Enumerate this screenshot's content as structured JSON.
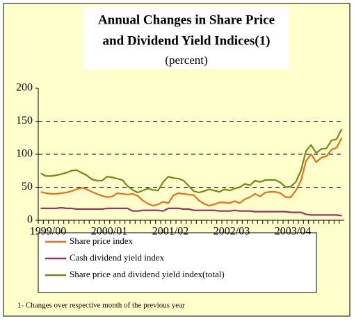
{
  "chart_data": {
    "type": "line",
    "title": [
      "Annual Changes in Share Price",
      "and Dividend Yield Indices(1)"
    ],
    "subtitle": "(percent)",
    "note": "1- Changes over respective month of the previous year",
    "categories": [
      "1999/00",
      null,
      null,
      null,
      null,
      null,
      null,
      null,
      null,
      null,
      null,
      null,
      "2000/01",
      null,
      null,
      null,
      null,
      null,
      null,
      null,
      null,
      null,
      null,
      null,
      "2001/02",
      null,
      null,
      null,
      null,
      null,
      null,
      null,
      null,
      null,
      null,
      null,
      "2002/03",
      null,
      null,
      null,
      null,
      null,
      null,
      null,
      null,
      null,
      null,
      null,
      "2003/04",
      null,
      null,
      null,
      null,
      null,
      null,
      null,
      null,
      null,
      null,
      null
    ],
    "series": [
      {
        "name": "Share price index",
        "color": "#f26b1d",
        "values": [
          43,
          41,
          40,
          40,
          41,
          42,
          44,
          47,
          49,
          47,
          43,
          40,
          37,
          35,
          36,
          41,
          40,
          39,
          40,
          37,
          30,
          25,
          22,
          24,
          28,
          26,
          38,
          41,
          40,
          39,
          38,
          30,
          25,
          22,
          24,
          27,
          27,
          26,
          29,
          26,
          32,
          35,
          40,
          36,
          42,
          43,
          43,
          41,
          35,
          35,
          45,
          60,
          90,
          100,
          88,
          95,
          97,
          107,
          110,
          125
        ]
      },
      {
        "name": "Cash dividend yield index",
        "color": "#993366",
        "values": [
          18,
          18,
          18,
          18,
          19,
          18,
          18,
          17,
          17,
          17,
          17,
          17,
          17,
          18,
          18,
          18,
          18,
          18,
          14,
          14,
          15,
          15,
          15,
          15,
          14,
          18,
          18,
          18,
          17,
          17,
          15,
          15,
          15,
          15,
          15,
          14,
          14,
          14,
          15,
          14,
          14,
          14,
          13,
          13,
          13,
          13,
          13,
          13,
          13,
          12,
          12,
          12,
          9,
          8,
          8,
          8,
          8,
          8,
          8,
          7
        ]
      },
      {
        "name": "Share price and dividend yield index(total)",
        "color": "#6b8e12",
        "values": [
          71,
          67,
          67,
          68,
          70,
          72,
          75,
          76,
          72,
          68,
          62,
          60,
          60,
          66,
          65,
          63,
          61,
          52,
          46,
          42,
          45,
          48,
          46,
          45,
          58,
          66,
          64,
          63,
          60,
          52,
          44,
          42,
          44,
          47,
          45,
          43,
          47,
          45,
          48,
          50,
          55,
          53,
          60,
          58,
          61,
          61,
          61,
          57,
          50,
          51,
          58,
          75,
          105,
          114,
          102,
          108,
          109,
          121,
          123,
          138
        ]
      }
    ],
    "ylim": [
      0,
      200
    ],
    "yticks": [
      0,
      50,
      100,
      150,
      200
    ],
    "grid": true
  }
}
